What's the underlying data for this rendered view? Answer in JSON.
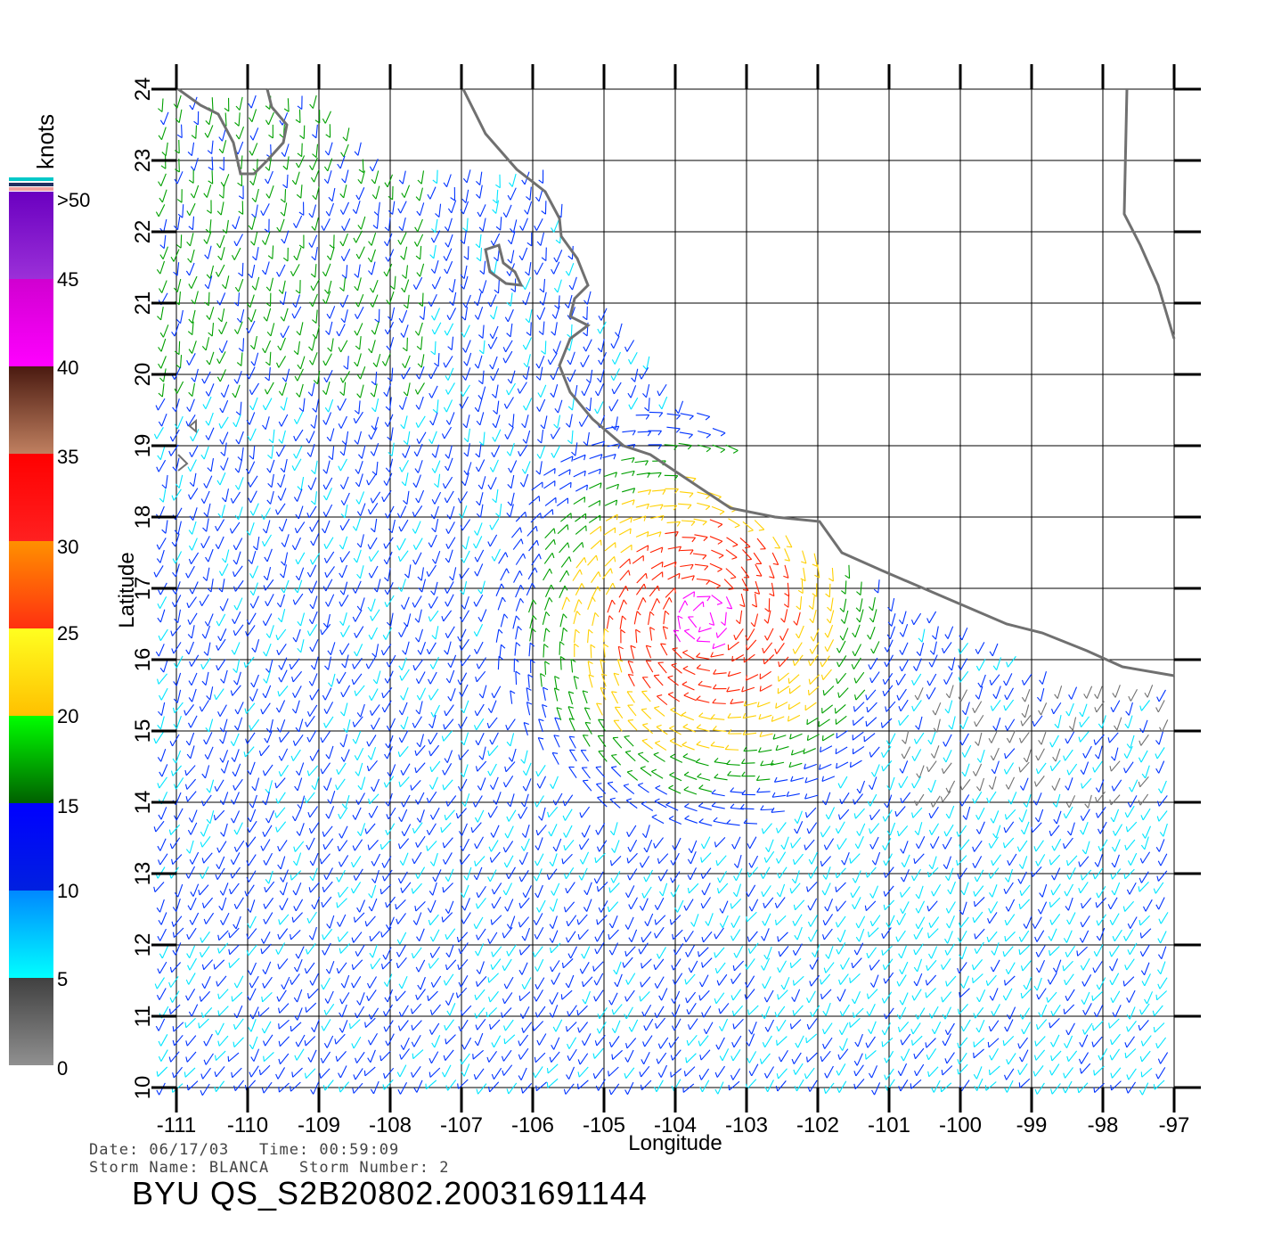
{
  "map": {
    "xlabel": "Longitude",
    "ylabel": "Latitude",
    "lon_ticks": [
      "-111",
      "-110",
      "-109",
      "-108",
      "-107",
      "-106",
      "-105",
      "-104",
      "-103",
      "-102",
      "-101",
      "-100",
      "-99",
      "-98",
      "-97"
    ],
    "lat_ticks": [
      "10",
      "11",
      "12",
      "13",
      "14",
      "15",
      "16",
      "17",
      "18",
      "19",
      "20",
      "21",
      "22",
      "23",
      "24"
    ],
    "lon_range": [
      -111,
      -97
    ],
    "lat_range": [
      10,
      24
    ],
    "grid": true,
    "storm_center": {
      "lon": -103.6,
      "lat": 16.6
    }
  },
  "legend": {
    "unit": "knots",
    "labels": [
      ">50",
      "45",
      "40",
      "35",
      "30",
      "25",
      "20",
      "15",
      "10",
      "5",
      "0"
    ],
    "colors": {
      "0-5": "#707070",
      "5-10": "#00e5ff",
      "10-15": "#0033ff",
      "15-20": "#00a000",
      "20-25": "#ffe000",
      "25-30": "#ff7000",
      "30-35": "#ff2000",
      "35-40": "#a0522d",
      "40-45": "#ff00ff",
      "45-50": "#8000c0"
    }
  },
  "info": {
    "date_line": "Date: 06/17/03   Time: 00:59:09",
    "storm_line": "Storm Name: BLANCA   Storm Number: 2",
    "product": "BYU QS_S2B20802.20031691144"
  }
}
